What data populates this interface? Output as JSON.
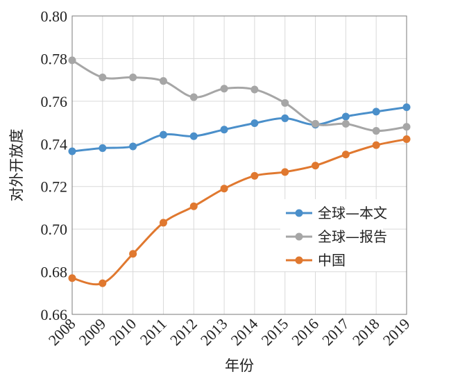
{
  "chart_data": {
    "type": "line",
    "categories": [
      "2008",
      "2009",
      "2010",
      "2011",
      "2012",
      "2013",
      "2014",
      "2015",
      "2016",
      "2017",
      "2018",
      "2019"
    ],
    "series": [
      {
        "name": "全球—本文",
        "color": "#4a8fca",
        "values": [
          0.7365,
          0.738,
          0.7388,
          0.7443,
          0.7436,
          0.7467,
          0.7497,
          0.752,
          0.749,
          0.7528,
          0.7551,
          0.7572
        ]
      },
      {
        "name": "全球—报告",
        "color": "#a6a6a6",
        "values": [
          0.7792,
          0.7712,
          0.7712,
          0.7695,
          0.7619,
          0.7659,
          0.7655,
          0.7592,
          0.7494,
          0.7494,
          0.7461,
          0.748
        ]
      },
      {
        "name": "中国",
        "color": "#e0782f",
        "values": [
          0.677,
          0.6746,
          0.6884,
          0.703,
          0.7107,
          0.719,
          0.725,
          0.7268,
          0.7298,
          0.735,
          0.7394,
          0.7422
        ]
      }
    ],
    "xlabel": "年份",
    "ylabel": "对外开放度",
    "ylim": [
      0.66,
      0.8
    ],
    "yticks": [
      "0.66",
      "0.68",
      "0.70",
      "0.72",
      "0.74",
      "0.76",
      "0.78",
      "0.80"
    ],
    "grid": true,
    "legend": "center-right"
  }
}
